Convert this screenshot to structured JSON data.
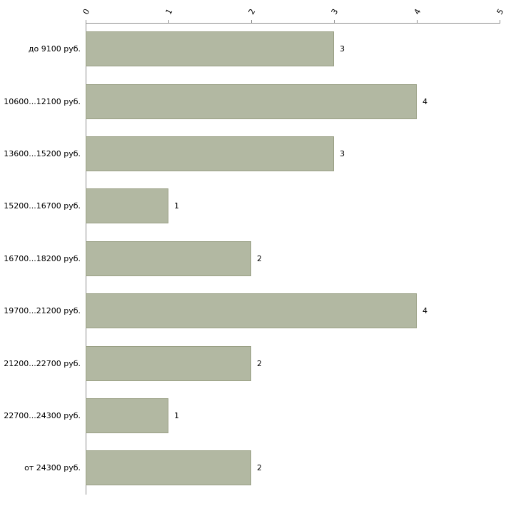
{
  "chart_data": {
    "type": "bar",
    "orientation": "horizontal",
    "title": "",
    "xlabel": "",
    "ylabel": "",
    "categories": [
      "до 9100 руб.",
      "10600...12100 руб.",
      "13600...15200 руб.",
      "15200...16700 руб.",
      "16700...18200 руб.",
      "19700...21200 руб.",
      "21200...22700 руб.",
      "22700...24300 руб.",
      "от 24300 руб."
    ],
    "values": [
      3,
      4,
      3,
      1,
      2,
      4,
      2,
      1,
      2
    ],
    "xlim": [
      0,
      5
    ],
    "xticks": [
      "0",
      "1",
      "2",
      "3",
      "4",
      "5"
    ],
    "grid": false,
    "legend": "none",
    "bar_color": "#b2b8a2",
    "bar_border_color": "#9aa085",
    "axis_color": "#8c8c8c",
    "text_color": "#000000"
  }
}
